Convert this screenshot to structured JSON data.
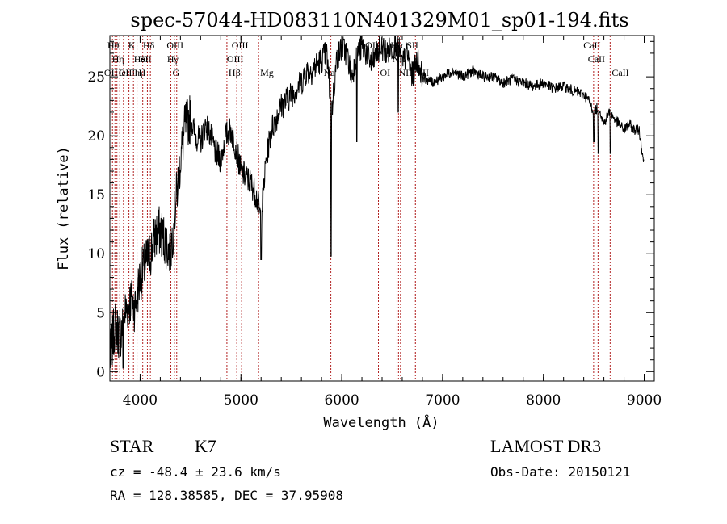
{
  "chart_data": {
    "type": "line",
    "title": "spec-57044-HD083110N401329M01_sp01-194.fits",
    "xlabel": "Wavelength (Å)",
    "ylabel": "Flux (relative)",
    "xlim": [
      3700,
      9100
    ],
    "ylim": [
      -0.8,
      28.5
    ],
    "xticks": [
      4000,
      5000,
      6000,
      7000,
      8000,
      9000
    ],
    "yticks": [
      0,
      5,
      10,
      15,
      20,
      25
    ],
    "grid": false,
    "line_color": "#000000",
    "marker_color": "#b22222",
    "series": [
      {
        "x": [
          3700,
          3750,
          3800,
          3850,
          3900,
          3950,
          4000,
          4050,
          4100,
          4150,
          4200,
          4250,
          4300,
          4350,
          4400,
          4450,
          4500,
          4550,
          4600,
          4650,
          4700,
          4750,
          4800,
          4850,
          4900,
          4950,
          5000,
          5050,
          5100,
          5150,
          5200,
          5250,
          5300,
          5350,
          5400,
          5450,
          5500,
          5550,
          5600,
          5650,
          5700,
          5750,
          5800,
          5850,
          5900,
          5950,
          6000,
          6050,
          6100,
          6150,
          6200,
          6250,
          6300,
          6350,
          6400,
          6450,
          6500,
          6550,
          6600,
          6650,
          6700,
          6750,
          6800,
          6900,
          7000,
          7100,
          7200,
          7300,
          7400,
          7500,
          7600,
          7700,
          7800,
          7900,
          8000,
          8100,
          8200,
          8300,
          8400,
          8450,
          8500,
          8550,
          8600,
          8650,
          8700,
          8750,
          8800,
          8850,
          8900,
          8950,
          9000
        ],
        "values": [
          1.0,
          4.0,
          3.0,
          5.0,
          6.0,
          5.5,
          8.0,
          9.0,
          10.0,
          11.5,
          12.0,
          11.0,
          10.0,
          14.0,
          18.0,
          21.0,
          21.5,
          20.0,
          19.5,
          21.0,
          20.0,
          18.5,
          18.0,
          20.0,
          20.5,
          19.0,
          17.0,
          16.5,
          16.0,
          15.0,
          13.0,
          18.0,
          20.5,
          21.5,
          22.5,
          23.0,
          23.5,
          24.0,
          24.5,
          25.5,
          25.5,
          26.0,
          26.5,
          27.0,
          22.0,
          26.5,
          27.5,
          27.0,
          25.0,
          27.0,
          27.5,
          27.0,
          26.0,
          27.0,
          27.5,
          27.0,
          27.5,
          28.0,
          26.0,
          27.0,
          25.0,
          26.5,
          25.0,
          24.5,
          25.0,
          25.5,
          25.0,
          25.5,
          25.0,
          25.0,
          24.5,
          24.8,
          24.5,
          24.2,
          24.5,
          24.0,
          24.2,
          23.8,
          23.5,
          23.0,
          22.0,
          22.5,
          21.0,
          22.0,
          21.5,
          21.0,
          20.5,
          21.0,
          20.5,
          20.5,
          17.5
        ],
        "dips": [
          {
            "x": 5895,
            "value": 9.8
          },
          {
            "x": 6150,
            "value": 19.5
          },
          {
            "x": 6560,
            "value": 22.0
          },
          {
            "x": 5200,
            "value": 9.5
          },
          {
            "x": 8500,
            "value": 19.5
          },
          {
            "x": 8545,
            "value": 18.5
          },
          {
            "x": 8665,
            "value": 18.5
          },
          {
            "x": 3830,
            "value": 0.3
          }
        ]
      }
    ],
    "line_markers": [
      {
        "x": 3726,
        "label": "OII",
        "row": 2
      },
      {
        "x": 3750,
        "label": "Hθ",
        "row": 0
      },
      {
        "x": 3770,
        "label": "OIII",
        "row": 3
      },
      {
        "x": 3798,
        "label": "Hη",
        "row": 1
      },
      {
        "x": 3835,
        "label": "HeI",
        "row": 2
      },
      {
        "x": 3889,
        "label": "Hη",
        "row": 3
      },
      {
        "x": 3934,
        "label": "K",
        "row": 0
      },
      {
        "x": 3969,
        "label": "H",
        "row": 3
      },
      {
        "x": 4026,
        "label": "HeI",
        "row": 1
      },
      {
        "x": 4072,
        "label": "SII",
        "row": 1
      },
      {
        "x": 4102,
        "label": "Hδ",
        "row": 0
      },
      {
        "x": 4305,
        "label": "G",
        "row": 3
      },
      {
        "x": 4340,
        "label": "Hγ",
        "row": 1
      },
      {
        "x": 4363,
        "label": "OIII",
        "row": 0
      },
      {
        "x": 4861,
        "label": "Hβ",
        "row": 3
      },
      {
        "x": 4959,
        "label": "OIII",
        "row": 1
      },
      {
        "x": 5007,
        "label": "OIII",
        "row": 0
      },
      {
        "x": 5175,
        "label": "Mg",
        "row": 3
      },
      {
        "x": 5892,
        "label": "Na",
        "row": 2
      },
      {
        "x": 6300,
        "label": "OI",
        "row": 0
      },
      {
        "x": 6364,
        "label": "OI",
        "row": 3
      },
      {
        "x": 6548,
        "label": "NII",
        "row": 3
      },
      {
        "x": 6563,
        "label": "Hα",
        "row": 0
      },
      {
        "x": 6583,
        "label": "NII",
        "row": 1
      },
      {
        "x": 6717,
        "label": "SII",
        "row": 0
      },
      {
        "x": 6731,
        "label": "SII",
        "row": 3
      },
      {
        "x": 8498,
        "label": "CaII",
        "row": 0
      },
      {
        "x": 8542,
        "label": "CaII",
        "row": 1
      },
      {
        "x": 8662,
        "label": "CaII",
        "row": 3
      }
    ]
  },
  "info": {
    "object_class": "STAR",
    "subclass": "K7",
    "redshift": "cz = -48.4 ± 23.6 km/s",
    "coordinates": "RA = 128.38585, DEC =  37.95908",
    "survey": "LAMOST DR3",
    "obs_date": "Obs-Date: 20150121"
  }
}
